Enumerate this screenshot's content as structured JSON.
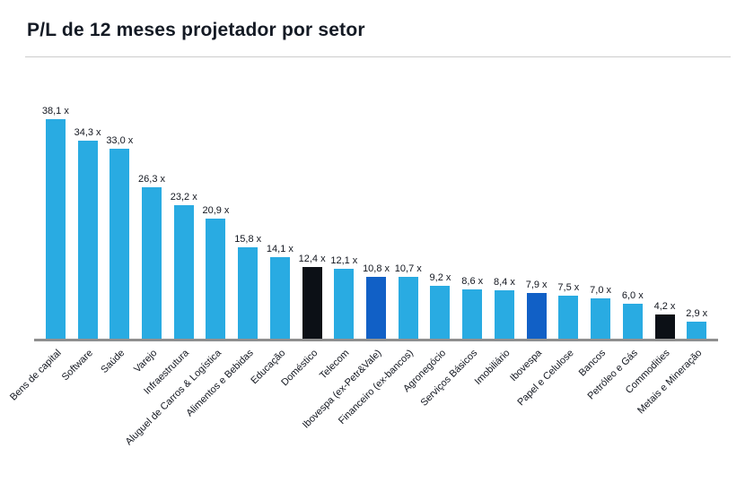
{
  "page": {
    "title": "P/L de 12 meses projetador por setor"
  },
  "chart_data": {
    "type": "bar",
    "title": "P/L de 12 meses projetador por setor",
    "xlabel": "",
    "ylabel": "",
    "ylim": [
      0,
      40
    ],
    "grid": false,
    "legend": "none",
    "value_suffix": " x",
    "categories": [
      "Bens de capital",
      "Software",
      "Saúde",
      "Varejo",
      "Infraestrutura",
      "Aluguel de Carros & Logística",
      "Alimentos e Bebidas",
      "Educação",
      "Doméstico",
      "Telecom",
      "Ibovespa (ex-Petr&Vale)",
      "Financeiro (ex-bancos)",
      "Agronegócio",
      "Serviços Básicos",
      "Imobiliário",
      "Ibovespa",
      "Papel e Celulose",
      "Bancos",
      "Petróleo e Gás",
      "Commodities",
      "Metais e Mineração"
    ],
    "values": [
      38.1,
      34.3,
      33.0,
      26.3,
      23.2,
      20.9,
      15.8,
      14.1,
      12.4,
      12.1,
      10.8,
      10.7,
      9.2,
      8.6,
      8.4,
      7.9,
      7.5,
      7.0,
      6.0,
      4.2,
      2.9
    ],
    "value_labels": [
      "38,1 x",
      "34,3 x",
      "33,0 x",
      "26,3 x",
      "23,2 x",
      "20,9 x",
      "15,8 x",
      "14,1 x",
      "12,4 x",
      "12,1 x",
      "10,8 x",
      "10,7 x",
      "9,2 x",
      "8,6 x",
      "8,4 x",
      "7,9 x",
      "7,5 x",
      "7,0 x",
      "6,0 x",
      "4,2 x",
      "2,9 x"
    ],
    "bar_colors": [
      "default",
      "default",
      "default",
      "default",
      "default",
      "default",
      "default",
      "default",
      "black",
      "default",
      "blue",
      "default",
      "default",
      "default",
      "default",
      "blue",
      "default",
      "default",
      "default",
      "black",
      "default"
    ],
    "palette": {
      "default": "#29abe2",
      "blue": "#1160c6",
      "black": "#0c1016",
      "axis_line": "#8f8f8f",
      "text": "#12161f",
      "title": "#141a24"
    },
    "highlighted_bars": {
      "black": [
        "Doméstico",
        "Commodities"
      ],
      "blue": [
        "Ibovespa (ex-Petr&Vale)",
        "Ibovespa"
      ]
    }
  }
}
